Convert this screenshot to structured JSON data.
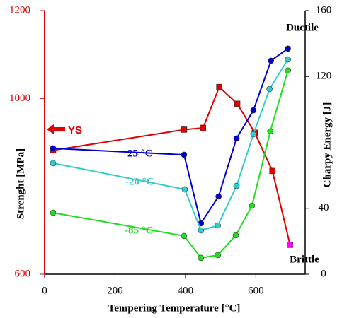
{
  "chart_data": {
    "type": "line",
    "x_label": "Tempering Temperature [°C]",
    "y_label": "Strenght [MPa]",
    "y2_label": "Charpy Energy [J]",
    "xlim": [
      0,
      740
    ],
    "xticks": [
      0,
      200,
      400,
      600
    ],
    "ylim": [
      600,
      1200
    ],
    "yticks": [
      600,
      1000,
      1200
    ],
    "y2lim": [
      0,
      160
    ],
    "y2ticks": [
      0,
      40,
      120,
      160
    ],
    "left_axis_color": "#e00000",
    "annotations": {
      "ys": "YS",
      "ductile": "Ductile",
      "brittle": "Brittle"
    },
    "series": [
      {
        "name": "YS",
        "color": "#e00000",
        "marker": "square",
        "last_point_color": "#ff00ff",
        "x": [
          24,
          396,
          450,
          496,
          547,
          597,
          647,
          697
        ],
        "values": [
          882,
          929,
          933,
          1026,
          988,
          922,
          835,
          667
        ]
      },
      {
        "name": "25 °C",
        "color": "#0000cc",
        "marker": "circle",
        "axis": "y2",
        "x": [
          24,
          396,
          444,
          494,
          545,
          593,
          643,
          691
        ],
        "values": [
          76.4,
          72.5,
          30.9,
          47.2,
          82.4,
          99.5,
          129.6,
          136.9
        ]
      },
      {
        "name": "-20 °C",
        "color": "#33cccc",
        "marker": "circle",
        "axis": "y2",
        "x": [
          24,
          398,
          444,
          492,
          545,
          593,
          639,
          691
        ],
        "values": [
          67.4,
          51.5,
          26.6,
          29.6,
          53.6,
          84.9,
          112.4,
          130.4
        ]
      },
      {
        "name": "-85 °C",
        "color": "#22dd22",
        "marker": "circle",
        "axis": "y2",
        "x": [
          24,
          396,
          444,
          492,
          543,
          589,
          641,
          691
        ],
        "values": [
          37.3,
          23.2,
          9.9,
          11.6,
          23.6,
          41.6,
          86.7,
          123.6
        ]
      }
    ]
  }
}
